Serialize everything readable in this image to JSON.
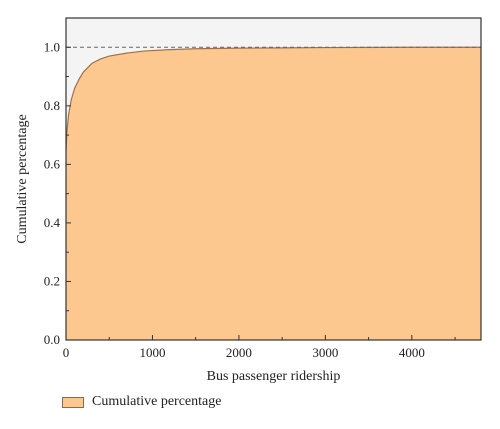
{
  "chart_data": {
    "type": "area",
    "xlabel": "Bus passenger ridership",
    "ylabel": "Cumulative percentage",
    "xlim": [
      0,
      4800
    ],
    "ylim": [
      0,
      1.1
    ],
    "xticks": [
      0,
      1000,
      2000,
      3000,
      4000
    ],
    "xtick_labels": [
      "0",
      "1000",
      "2000",
      "3000",
      "4000"
    ],
    "yticks": [
      0,
      0.2,
      0.4,
      0.6,
      0.8,
      1.0
    ],
    "ytick_labels": [
      "0.0",
      "0.2",
      "0.4",
      "0.6",
      "0.8",
      "1.0"
    ],
    "reference_line": {
      "y": 1.0,
      "style": "dashed"
    },
    "grid": false,
    "legend_position": "bottom-left",
    "series": [
      {
        "name": "Cumulative percentage",
        "fill_color": "#fdc890",
        "line_color": "#a0704c",
        "x": [
          0,
          10,
          30,
          60,
          100,
          150,
          200,
          300,
          400,
          500,
          700,
          900,
          1200,
          1500,
          2000,
          2500,
          3000,
          4000,
          4800
        ],
        "y": [
          0.65,
          0.71,
          0.77,
          0.82,
          0.86,
          0.89,
          0.915,
          0.945,
          0.96,
          0.97,
          0.98,
          0.987,
          0.992,
          0.995,
          0.997,
          0.998,
          0.999,
          1.0,
          1.0
        ]
      }
    ]
  }
}
